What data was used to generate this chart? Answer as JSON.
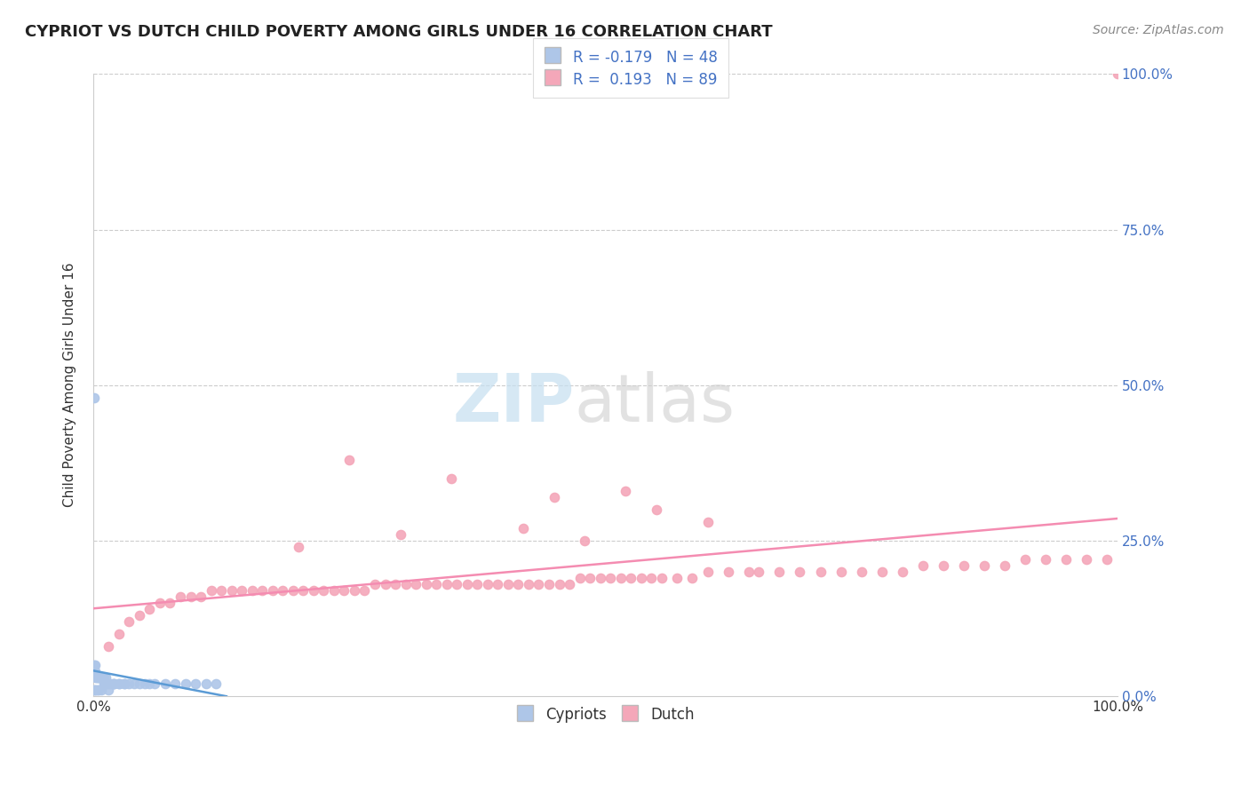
{
  "title": "CYPRIOT VS DUTCH CHILD POVERTY AMONG GIRLS UNDER 16 CORRELATION CHART",
  "source": "Source: ZipAtlas.com",
  "ylabel": "Child Poverty Among Girls Under 16",
  "cypriot_color": "#aec6e8",
  "dutch_color": "#f4a7b9",
  "cypriot_line_color": "#5b9bd5",
  "dutch_line_color": "#f48cb1",
  "right_tick_color": "#4472c4",
  "legend_label_cypriot": "Cypriots",
  "legend_label_dutch": "Dutch",
  "R_cypriot": -0.179,
  "N_cypriot": 48,
  "R_dutch": 0.193,
  "N_dutch": 89,
  "cypriot_x": [
    0.1,
    0.1,
    0.1,
    0.1,
    0.2,
    0.2,
    0.2,
    0.3,
    0.3,
    0.3,
    0.4,
    0.4,
    0.5,
    0.5,
    0.5,
    0.6,
    0.7,
    0.8,
    0.8,
    0.9,
    1.0,
    1.0,
    1.1,
    1.2,
    1.2,
    1.3,
    1.5,
    1.5,
    1.7,
    2.0,
    2.0,
    2.0,
    2.5,
    2.5,
    3.0,
    3.0,
    3.5,
    4.0,
    4.5,
    5.0,
    5.5,
    6.0,
    7.0,
    8.0,
    9.0,
    10.0,
    11.0,
    12.0
  ],
  "cypriot_y": [
    48,
    5,
    4,
    1,
    5,
    4,
    1,
    3,
    3,
    1,
    3,
    1,
    3,
    3,
    1,
    3,
    3,
    3,
    1,
    3,
    3,
    2,
    2,
    3,
    2,
    2,
    2,
    1,
    2,
    2,
    2,
    2,
    2,
    2,
    2,
    2,
    2,
    2,
    2,
    2,
    2,
    2,
    2,
    2,
    2,
    2,
    2,
    2
  ],
  "dutch_x": [
    1.5,
    2.5,
    3.5,
    4.5,
    5.5,
    6.5,
    7.5,
    8.5,
    9.5,
    10.5,
    11.5,
    12.5,
    13.5,
    14.5,
    15.5,
    16.5,
    17.5,
    18.5,
    19.5,
    20.5,
    21.5,
    22.5,
    23.5,
    24.5,
    25.5,
    26.5,
    27.5,
    28.5,
    29.5,
    30.5,
    31.5,
    32.5,
    33.5,
    34.5,
    35.5,
    36.5,
    37.5,
    38.5,
    39.5,
    40.5,
    41.5,
    42.5,
    43.5,
    44.5,
    45.5,
    46.5,
    47.5,
    48.5,
    49.5,
    50.5,
    51.5,
    52.5,
    53.5,
    54.5,
    55.5,
    57.0,
    58.5,
    60.0,
    62.0,
    64.0,
    65.0,
    67.0,
    69.0,
    71.0,
    73.0,
    75.0,
    77.0,
    79.0,
    81.0,
    83.0,
    85.0,
    87.0,
    89.0,
    91.0,
    93.0,
    95.0,
    97.0,
    99.0,
    100.0,
    25.0,
    35.0,
    45.0,
    55.0,
    60.0,
    42.0,
    30.0,
    20.0,
    52.0,
    48.0
  ],
  "dutch_y": [
    8,
    10,
    12,
    13,
    14,
    15,
    15,
    16,
    16,
    16,
    17,
    17,
    17,
    17,
    17,
    17,
    17,
    17,
    17,
    17,
    17,
    17,
    17,
    17,
    17,
    17,
    18,
    18,
    18,
    18,
    18,
    18,
    18,
    18,
    18,
    18,
    18,
    18,
    18,
    18,
    18,
    18,
    18,
    18,
    18,
    18,
    19,
    19,
    19,
    19,
    19,
    19,
    19,
    19,
    19,
    19,
    19,
    20,
    20,
    20,
    20,
    20,
    20,
    20,
    20,
    20,
    20,
    20,
    21,
    21,
    21,
    21,
    21,
    22,
    22,
    22,
    22,
    22,
    100,
    38,
    35,
    32,
    30,
    28,
    27,
    26,
    24,
    33,
    25
  ]
}
